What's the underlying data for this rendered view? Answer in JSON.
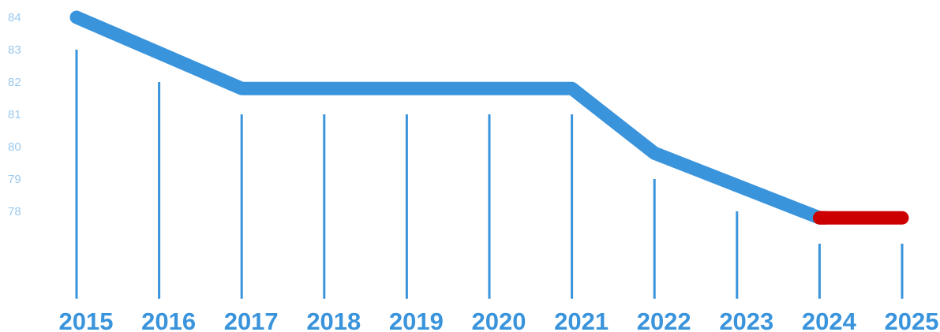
{
  "chart_data": {
    "type": "line",
    "title": "",
    "xlabel": "",
    "ylabel": "",
    "categories": [
      "2015",
      "2016",
      "2017",
      "2018",
      "2019",
      "2020",
      "2021",
      "2022",
      "2023",
      "2024",
      "2025"
    ],
    "y_ticks": [
      "84",
      "83",
      "82",
      "81",
      "80",
      "79",
      "78"
    ],
    "ylim": [
      77,
      84
    ],
    "line_values": [
      84,
      82.9,
      81.8,
      81.8,
      81.8,
      81.8,
      81.8,
      79.8,
      78.8,
      77.8,
      77.8
    ],
    "drop_values": [
      83,
      82,
      81,
      81,
      81,
      81,
      81,
      79,
      78,
      77,
      77
    ],
    "drop_baseline": 75.3,
    "highlight_segment": [
      "2024",
      "2025"
    ],
    "colors": {
      "line": "#3a94dc",
      "highlight": "#cc0000",
      "drop_lines": "#3a94dc",
      "y_tick_text": "#9cc9ee",
      "x_tick_text": "#3a94dc"
    }
  }
}
